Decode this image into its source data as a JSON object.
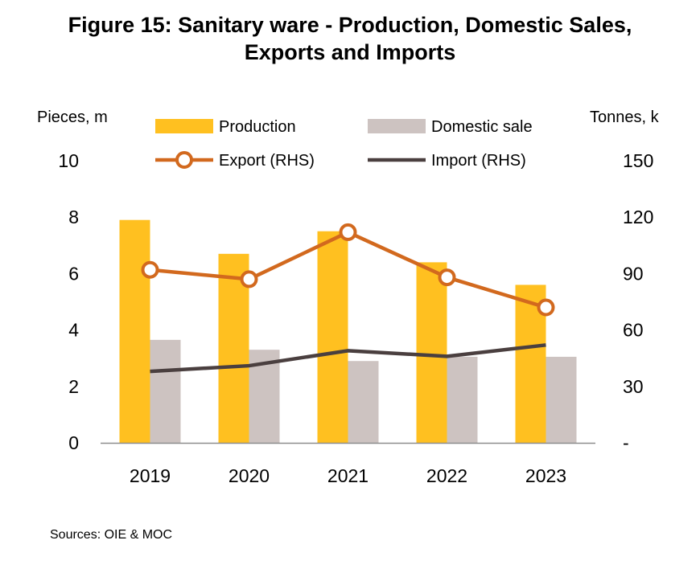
{
  "title_line1": "Figure 15: Sanitary ware - Production, Domestic Sales,",
  "title_line2": "Exports and Imports",
  "source": "Sources: OIE & MOC",
  "chart_data": {
    "type": "bar+line",
    "categories": [
      "2019",
      "2020",
      "2021",
      "2022",
      "2023"
    ],
    "left_axis": {
      "title": "Pieces, m",
      "ylim": [
        0,
        10
      ],
      "ticks": [
        "0",
        "2",
        "4",
        "6",
        "8",
        "10"
      ]
    },
    "right_axis": {
      "title": "Tonnes, k",
      "ylim": [
        0,
        150
      ],
      "ticks": [
        "-",
        "30",
        "60",
        "90",
        "120",
        "150"
      ]
    },
    "series": [
      {
        "name": "Production",
        "kind": "bar",
        "axis": "left",
        "color": "#FFC020",
        "values": [
          7.9,
          6.7,
          7.5,
          6.4,
          5.6
        ]
      },
      {
        "name": "Domestic sale",
        "kind": "bar",
        "axis": "left",
        "color": "#CDC3C1",
        "values": [
          3.65,
          3.3,
          2.9,
          3.05,
          3.05
        ]
      },
      {
        "name": "Export (RHS)",
        "kind": "line-marker",
        "axis": "right",
        "color": "#D2691E",
        "values": [
          92,
          87,
          112,
          88,
          72
        ]
      },
      {
        "name": "Import (RHS)",
        "kind": "line",
        "axis": "right",
        "color": "#4A3F3F",
        "values": [
          38,
          41,
          49,
          46,
          52
        ]
      }
    ],
    "grid": false,
    "legend": "top"
  }
}
